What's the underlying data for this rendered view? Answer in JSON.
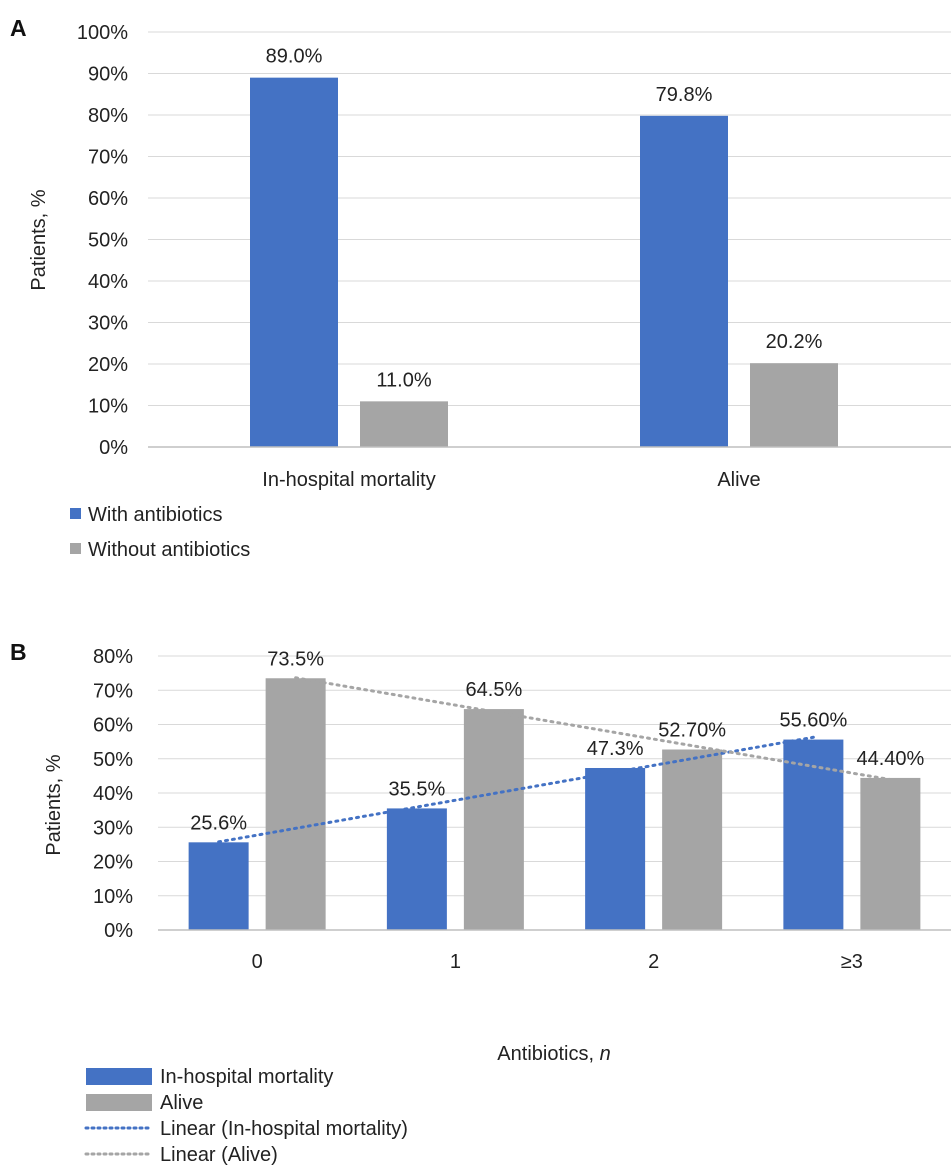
{
  "chart_data": [
    {
      "panel_label": "A",
      "type": "bar",
      "categories": [
        "In-hospital mortality",
        "Alive"
      ],
      "series": [
        {
          "name": "With antibiotics",
          "values": [
            89.0,
            79.8
          ],
          "labels": [
            "89.0%",
            "79.8%"
          ],
          "color": "#4472c4"
        },
        {
          "name": "Without antibiotics",
          "values": [
            11.0,
            20.2
          ],
          "labels": [
            "11.0%",
            "20.2%"
          ],
          "color": "#a5a5a5"
        }
      ],
      "ylabel": "Patients, %",
      "xlabel": "",
      "ylim": [
        0,
        100
      ],
      "yticks": [
        "0%",
        "10%",
        "20%",
        "30%",
        "40%",
        "50%",
        "60%",
        "70%",
        "80%",
        "90%",
        "100%"
      ],
      "grid": true,
      "legend_position": "bottom-left"
    },
    {
      "panel_label": "B",
      "type": "bar",
      "categories": [
        "0",
        "1",
        "2",
        "≥3"
      ],
      "series": [
        {
          "name": "In-hospital mortality",
          "values": [
            25.6,
            35.5,
            47.3,
            55.6
          ],
          "labels": [
            "25.6%",
            "35.5%",
            "47.3%",
            "55.60%"
          ],
          "color": "#4472c4"
        },
        {
          "name": "Alive",
          "values": [
            73.5,
            64.5,
            52.7,
            44.4
          ],
          "labels": [
            "73.5%",
            "64.5%",
            "52.70%",
            "44.40%"
          ],
          "color": "#a5a5a5"
        }
      ],
      "trendlines": [
        {
          "name": "Linear (In-hospital mortality)",
          "series": "In-hospital mortality",
          "color": "#4472c4",
          "style": "dotted"
        },
        {
          "name": "Linear (Alive)",
          "series": "Alive",
          "color": "#a5a5a5",
          "style": "dotted"
        }
      ],
      "xlabel_prefix": "Antibiotics, ",
      "xlabel_italic": "n",
      "ylabel": "Patients, %",
      "ylim": [
        0,
        80
      ],
      "yticks": [
        "0%",
        "10%",
        "20%",
        "30%",
        "40%",
        "50%",
        "60%",
        "70%",
        "80%"
      ],
      "grid": true,
      "legend_position": "bottom-left"
    }
  ]
}
